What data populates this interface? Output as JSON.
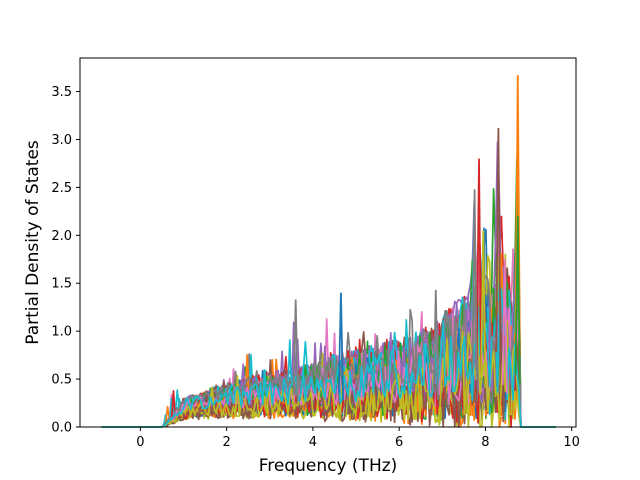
{
  "chart_data": {
    "type": "line",
    "title": "",
    "xlabel": "Frequency (THz)",
    "ylabel": "Partial Density of States",
    "xlim": [
      -1.4,
      10.1
    ],
    "ylim": [
      0.0,
      3.85
    ],
    "xticks": [
      0,
      2,
      4,
      6,
      8,
      10
    ],
    "yticks": [
      0.0,
      0.5,
      1.0,
      1.5,
      2.0,
      2.5,
      3.0,
      3.5
    ],
    "xtick_labels": [
      "0",
      "2",
      "4",
      "6",
      "8",
      "10"
    ],
    "ytick_labels": [
      "0.0",
      "0.5",
      "1.0",
      "1.5",
      "2.0",
      "2.5",
      "3.0",
      "3.5"
    ],
    "grid": false,
    "legend": "none",
    "x_range_of_data": [
      -0.9,
      9.65
    ],
    "band_edges": [
      0.5,
      8.8
    ],
    "series_count": 40,
    "colors": [
      "#1f77b4",
      "#ff7f0e",
      "#2ca02c",
      "#d62728",
      "#9467bd",
      "#8c564b",
      "#e377c2",
      "#7f7f7f",
      "#bcbd22",
      "#17becf"
    ],
    "envelope_x": [
      0.5,
      0.8,
      1.0,
      1.5,
      2.0,
      2.5,
      3.0,
      3.5,
      3.6,
      4.0,
      4.6,
      4.7,
      5.0,
      5.5,
      6.0,
      6.5,
      6.8,
      7.0,
      7.4,
      7.7,
      7.8,
      8.0,
      8.1,
      8.3,
      8.5,
      8.6,
      8.75,
      8.8
    ],
    "envelope_y": [
      0.02,
      0.45,
      0.3,
      0.35,
      0.5,
      0.85,
      0.7,
      0.95,
      1.33,
      1.1,
      1.4,
      1.25,
      1.0,
      1.05,
      1.1,
      1.25,
      1.43,
      1.2,
      1.3,
      2.48,
      2.8,
      2.05,
      1.75,
      3.12,
      1.7,
      1.3,
      3.67,
      0.0
    ]
  }
}
